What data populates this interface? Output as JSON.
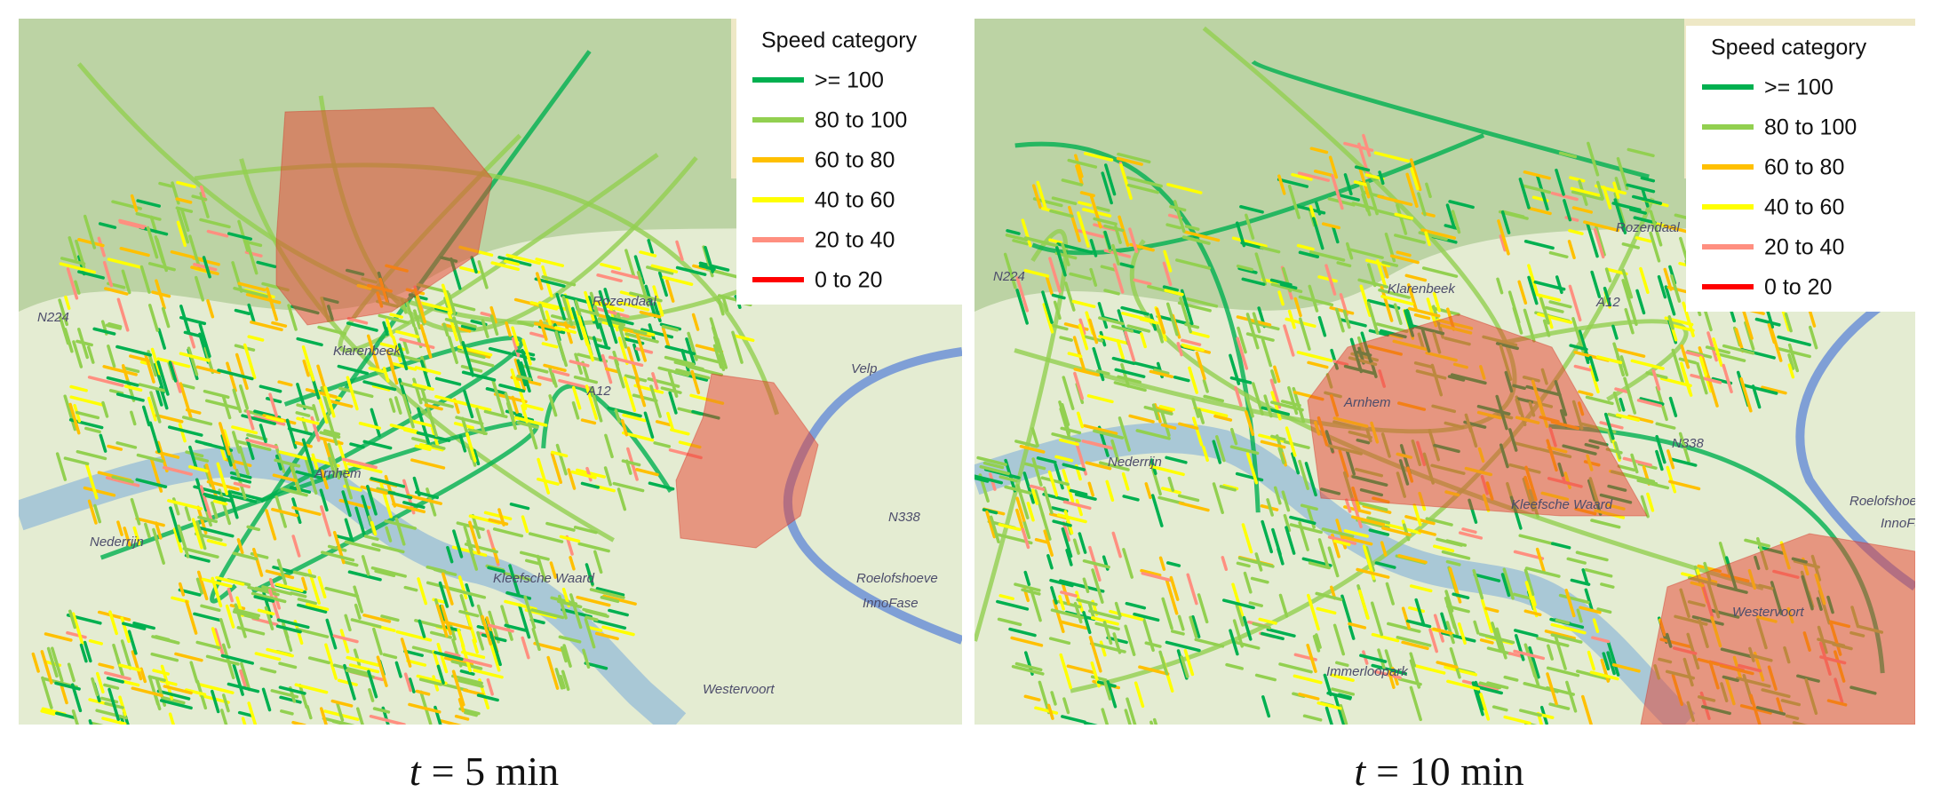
{
  "panels": [
    {
      "caption": {
        "symbol": "t",
        "text": "= 5 min"
      },
      "legend": {
        "title": "Speed category",
        "items": [
          {
            "label": ">= 100",
            "color": "#00b050"
          },
          {
            "label": "80 to 100",
            "color": "#92d050"
          },
          {
            "label": "60 to 80",
            "color": "#ffc000"
          },
          {
            "label": "40 to 60",
            "color": "#ffff00"
          },
          {
            "label": "20 to 40",
            "color": "#ff8f80"
          },
          {
            "label": "0 to 20",
            "color": "#ff0000"
          }
        ]
      },
      "places": [
        "Arnhem",
        "Rozendaal",
        "Klarenbeek",
        "Kleefsche Waard",
        "Westervoort",
        "Roelofshoeve",
        "InnoFase",
        "Velp",
        "N224",
        "N338",
        "Nederrijn",
        "A12"
      ]
    },
    {
      "caption": {
        "symbol": "t",
        "text": "= 10 min"
      },
      "legend": {
        "title": "Speed category",
        "items": [
          {
            "label": ">= 100",
            "color": "#00b050"
          },
          {
            "label": "80 to 100",
            "color": "#92d050"
          },
          {
            "label": "60 to 80",
            "color": "#ffc000"
          },
          {
            "label": "40 to 60",
            "color": "#ffff00"
          },
          {
            "label": "20 to 40",
            "color": "#ff8f80"
          },
          {
            "label": "0 to 20",
            "color": "#ff0000"
          }
        ]
      },
      "places": [
        "Arnhem",
        "Rozendaal",
        "Klarenbeek",
        "Kleefsche Waard",
        "Westervoort",
        "Roelofshoeve",
        "InnoFase",
        "Immerloopark",
        "N224",
        "N338",
        "Nederrijn",
        "A12"
      ]
    }
  ]
}
